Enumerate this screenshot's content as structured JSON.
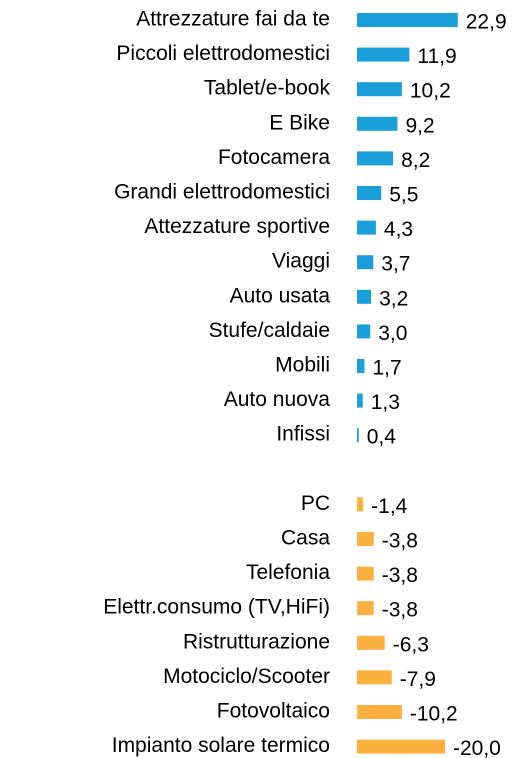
{
  "chart_data": {
    "type": "bar",
    "orientation": "horizontal",
    "categories": [
      "Attrezzature fai da te",
      "Piccoli elettrodomestici",
      "Tablet/e-book",
      "E Bike",
      "Fotocamera",
      "Grandi elettrodomestici",
      "Attezzature sportive",
      "Viaggi",
      "Auto  usata",
      "Stufe/caldaie",
      "Mobili",
      "Auto nuova",
      "Infissi",
      null,
      "PC",
      "Casa",
      "Telefonia",
      "Elettr.consumo (TV,HiFi)",
      "Ristrutturazione",
      "Motociclo/Scooter",
      "Fotovoltaico",
      "Impianto solare termico"
    ],
    "values": [
      22.9,
      11.9,
      10.2,
      9.2,
      8.2,
      5.5,
      4.3,
      3.7,
      3.2,
      3.0,
      1.7,
      1.3,
      0.4,
      null,
      -1.4,
      -3.8,
      -3.8,
      -3.8,
      -6.3,
      -7.9,
      -10.2,
      -20.0
    ],
    "value_labels": [
      "22,9",
      "11,9",
      "10,2",
      "9,2",
      "8,2",
      "5,5",
      "4,3",
      "3,7",
      "3,2",
      "3,0",
      "1,7",
      "1,3",
      "0,4",
      null,
      "-1,4",
      "-3,8",
      "-3,8",
      "-3,8",
      "-6,3",
      "-7,9",
      "-10,2",
      "-20,0"
    ],
    "color": "#1b9fdb",
    "negative_color": "#fbb040"
  }
}
